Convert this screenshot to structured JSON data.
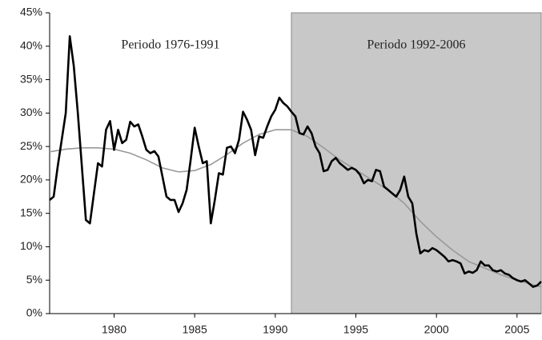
{
  "chart_data": {
    "type": "line",
    "annotations": [
      "Periodo 1976-1991",
      "Periodo 1992-2006"
    ],
    "shaded_xrange": [
      1991,
      2006.5
    ],
    "shade_color": "#c8c8c8",
    "xlim": [
      1976,
      2006.5
    ],
    "xticks": [
      1980,
      1985,
      1990,
      1995,
      2000,
      2005
    ],
    "ylim": [
      0,
      45
    ],
    "yticks": [
      {
        "value": 0,
        "label": "0%"
      },
      {
        "value": 5,
        "label": "5%"
      },
      {
        "value": 10,
        "label": "10%"
      },
      {
        "value": 15,
        "label": "15%"
      },
      {
        "value": 20,
        "label": "20%"
      },
      {
        "value": 25,
        "label": "25%"
      },
      {
        "value": 30,
        "label": "30%"
      },
      {
        "value": 35,
        "label": "35%"
      },
      {
        "value": 40,
        "label": "40%"
      },
      {
        "value": 45,
        "label": "45%"
      }
    ],
    "grid": false,
    "series": [
      {
        "color": "#000000",
        "width": 2.6,
        "x": [
          1976,
          1976.25,
          1976.5,
          1976.75,
          1977,
          1977.25,
          1977.5,
          1977.75,
          1978,
          1978.25,
          1978.5,
          1978.75,
          1979,
          1979.25,
          1979.5,
          1979.75,
          1980,
          1980.25,
          1980.5,
          1980.75,
          1981,
          1981.25,
          1981.5,
          1981.75,
          1982,
          1982.25,
          1982.5,
          1982.75,
          1983,
          1983.25,
          1983.5,
          1983.75,
          1984,
          1984.25,
          1984.5,
          1984.75,
          1985,
          1985.25,
          1985.5,
          1985.75,
          1986,
          1986.25,
          1986.5,
          1986.75,
          1987,
          1987.25,
          1987.5,
          1987.75,
          1988,
          1988.25,
          1988.5,
          1988.75,
          1989,
          1989.25,
          1989.5,
          1989.75,
          1990,
          1990.25,
          1990.5,
          1990.75,
          1991,
          1991.25,
          1991.5,
          1991.75,
          1992,
          1992.25,
          1992.5,
          1992.75,
          1993,
          1993.25,
          1993.5,
          1993.75,
          1994,
          1994.25,
          1994.5,
          1994.75,
          1995,
          1995.25,
          1995.5,
          1995.75,
          1996,
          1996.25,
          1996.5,
          1996.75,
          1997,
          1997.25,
          1997.5,
          1997.75,
          1998,
          1998.25,
          1998.5,
          1998.75,
          1999,
          1999.25,
          1999.5,
          1999.75,
          2000,
          2000.25,
          2000.5,
          2000.75,
          2001,
          2001.25,
          2001.5,
          2001.75,
          2002,
          2002.25,
          2002.5,
          2002.75,
          2003,
          2003.25,
          2003.5,
          2003.75,
          2004,
          2004.25,
          2004.5,
          2004.75,
          2005,
          2005.25,
          2005.5,
          2005.75,
          2006,
          2006.25,
          2006.5
        ],
        "values": [
          17,
          17.5,
          22,
          26,
          30,
          41.5,
          37,
          30,
          22,
          14,
          13.5,
          18,
          22.5,
          22,
          27.5,
          28.8,
          24.5,
          27.5,
          25.5,
          26,
          28.7,
          28,
          28.3,
          26.5,
          24.5,
          24,
          24.3,
          23.5,
          20.5,
          17.5,
          17,
          17,
          15.2,
          16.5,
          18.5,
          23,
          27.8,
          25,
          22.5,
          22.8,
          13.5,
          17,
          21,
          20.8,
          24.8,
          25,
          24,
          26,
          30.2,
          29,
          27.5,
          23.7,
          26.5,
          26.3,
          28,
          29.5,
          30.5,
          32.3,
          31.5,
          31,
          30.2,
          29.5,
          27,
          26.8,
          28,
          27,
          25,
          24,
          21.3,
          21.5,
          22.8,
          23.3,
          22.5,
          22,
          21.5,
          21.8,
          21.5,
          20.8,
          19.5,
          20,
          19.8,
          21.5,
          21.3,
          19,
          18.5,
          18,
          17.5,
          18.5,
          20.5,
          17.5,
          16.5,
          12,
          9,
          9.5,
          9.3,
          9.8,
          9.5,
          9,
          8.5,
          7.8,
          8,
          7.8,
          7.5,
          6,
          6.3,
          6.1,
          6.5,
          7.8,
          7.2,
          7.2,
          6.5,
          6.3,
          6.5,
          6,
          5.8,
          5.3,
          5,
          4.8,
          5,
          4.5,
          4,
          4.2,
          4.8
        ]
      },
      {
        "color": "#999999",
        "width": 1.6,
        "x": [
          1976,
          1977,
          1978,
          1979,
          1980,
          1981,
          1982,
          1983,
          1984,
          1985,
          1986,
          1987,
          1988,
          1989,
          1990,
          1991,
          1992,
          1993,
          1994,
          1995,
          1996,
          1997,
          1998,
          1999,
          2000,
          2001,
          2002,
          2003,
          2004,
          2005,
          2006,
          2006.5
        ],
        "values": [
          24.2,
          24.6,
          24.8,
          24.8,
          24.6,
          24,
          23,
          21.8,
          21.2,
          21.4,
          22.3,
          23.8,
          25.5,
          26.8,
          27.5,
          27.5,
          26.5,
          24.8,
          23,
          21.5,
          20,
          18.5,
          16.5,
          13.8,
          11.5,
          9.5,
          7.8,
          6.8,
          5.8,
          5,
          4.3,
          4
        ]
      }
    ]
  }
}
